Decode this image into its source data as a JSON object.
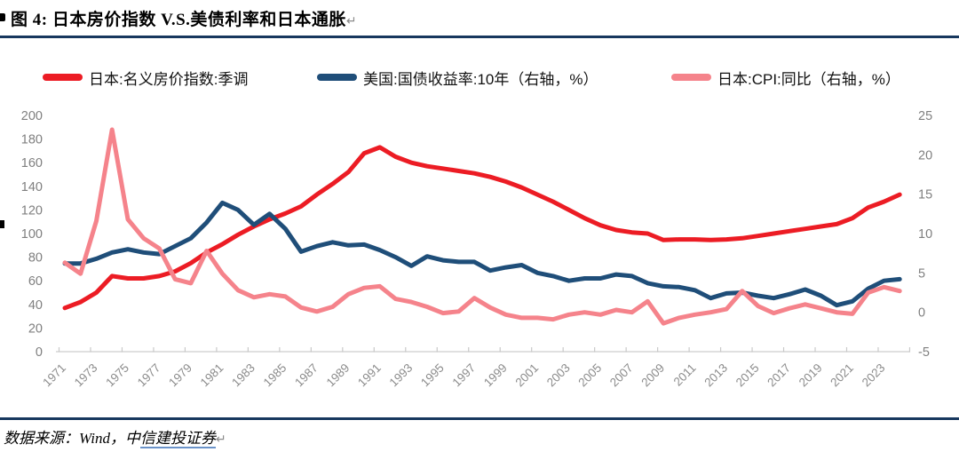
{
  "page": {
    "title": "图 4:  日本房价指数 V.S.美债利率和日本通胀",
    "paragraph_mark": "↵",
    "source_prefix": "数据来源：Wind，中",
    "source_link": "信建投证券"
  },
  "legend": {
    "items": [
      {
        "label": "日本:名义房价指数:季调",
        "color": "#EC1C24"
      },
      {
        "label": "美国:国债收益率:10年（右轴，%）",
        "color": "#1F4E79"
      },
      {
        "label": "日本:CPI:同比（右轴，%）",
        "color": "#F5838B"
      }
    ]
  },
  "chart_data": {
    "type": "line",
    "title": "日本房价指数 V.S.美债利率和日本通胀",
    "grid": false,
    "legend_position": "top",
    "left_axis": {
      "min": 0,
      "max": 200,
      "ticks": [
        0,
        20,
        40,
        60,
        80,
        100,
        120,
        140,
        160,
        180,
        200
      ]
    },
    "right_axis": {
      "min": -5,
      "max": 25,
      "ticks": [
        -5,
        0,
        5,
        10,
        15,
        20,
        25
      ]
    },
    "x_tick_labels": [
      "1971",
      "1973",
      "1975",
      "1977",
      "1979",
      "1981",
      "1983",
      "1985",
      "1987",
      "1989",
      "1991",
      "1993",
      "1995",
      "1997",
      "1999",
      "2001",
      "2003",
      "2005",
      "2007",
      "2009",
      "2011",
      "2013",
      "2015",
      "2017",
      "2019",
      "2021",
      "2023"
    ],
    "years": [
      1971,
      1972,
      1973,
      1974,
      1975,
      1976,
      1977,
      1978,
      1979,
      1980,
      1981,
      1982,
      1983,
      1984,
      1985,
      1986,
      1987,
      1988,
      1989,
      1990,
      1991,
      1992,
      1993,
      1994,
      1995,
      1996,
      1997,
      1998,
      1999,
      2000,
      2001,
      2002,
      2003,
      2004,
      2005,
      2006,
      2007,
      2008,
      2009,
      2010,
      2011,
      2012,
      2013,
      2014,
      2015,
      2016,
      2017,
      2018,
      2019,
      2020,
      2021,
      2022,
      2023,
      2024
    ],
    "series": [
      {
        "name": "日本:名义房价指数:季调",
        "axis": "left",
        "color": "#EC1C24",
        "values": [
          37,
          42,
          50,
          64,
          62,
          62,
          64,
          68,
          75,
          84,
          91,
          99,
          106,
          112,
          117,
          123,
          133,
          142,
          152,
          168,
          173,
          165,
          160,
          157,
          155,
          153,
          151,
          148,
          144,
          139,
          133,
          127,
          120,
          113,
          107,
          103,
          101,
          100,
          94.5,
          95,
          95,
          94.5,
          95,
          96,
          98,
          100,
          102,
          104,
          106,
          108,
          113,
          122,
          127,
          133
        ]
      },
      {
        "name": "美国:国债收益率:10年（右轴，%）",
        "axis": "right",
        "color": "#1F4E79",
        "values": [
          6.2,
          6.2,
          6.8,
          7.6,
          8.0,
          7.6,
          7.4,
          8.4,
          9.4,
          11.4,
          13.9,
          13.0,
          11.1,
          12.5,
          10.6,
          7.7,
          8.4,
          8.9,
          8.5,
          8.6,
          7.9,
          7.0,
          5.9,
          7.1,
          6.6,
          6.4,
          6.4,
          5.3,
          5.7,
          6.0,
          5.0,
          4.6,
          4.0,
          4.3,
          4.3,
          4.8,
          4.6,
          3.7,
          3.3,
          3.2,
          2.8,
          1.8,
          2.4,
          2.5,
          2.1,
          1.8,
          2.3,
          2.9,
          2.1,
          0.9,
          1.4,
          3.0,
          4.0,
          4.2
        ]
      },
      {
        "name": "日本:CPI:同比（右轴，%）",
        "axis": "right",
        "color": "#F5838B",
        "values": [
          6.3,
          4.9,
          11.6,
          23.2,
          11.8,
          9.4,
          8.1,
          4.2,
          3.7,
          7.8,
          4.9,
          2.8,
          1.9,
          2.3,
          2.0,
          0.6,
          0.1,
          0.7,
          2.3,
          3.1,
          3.3,
          1.7,
          1.3,
          0.7,
          -0.1,
          0.1,
          1.8,
          0.6,
          -0.3,
          -0.7,
          -0.7,
          -0.9,
          -0.3,
          0.0,
          -0.3,
          0.3,
          0.0,
          1.4,
          -1.4,
          -0.7,
          -0.3,
          0.0,
          0.4,
          2.7,
          0.8,
          -0.1,
          0.5,
          1.0,
          0.5,
          0.0,
          -0.2,
          2.5,
          3.2,
          2.7
        ]
      }
    ]
  }
}
